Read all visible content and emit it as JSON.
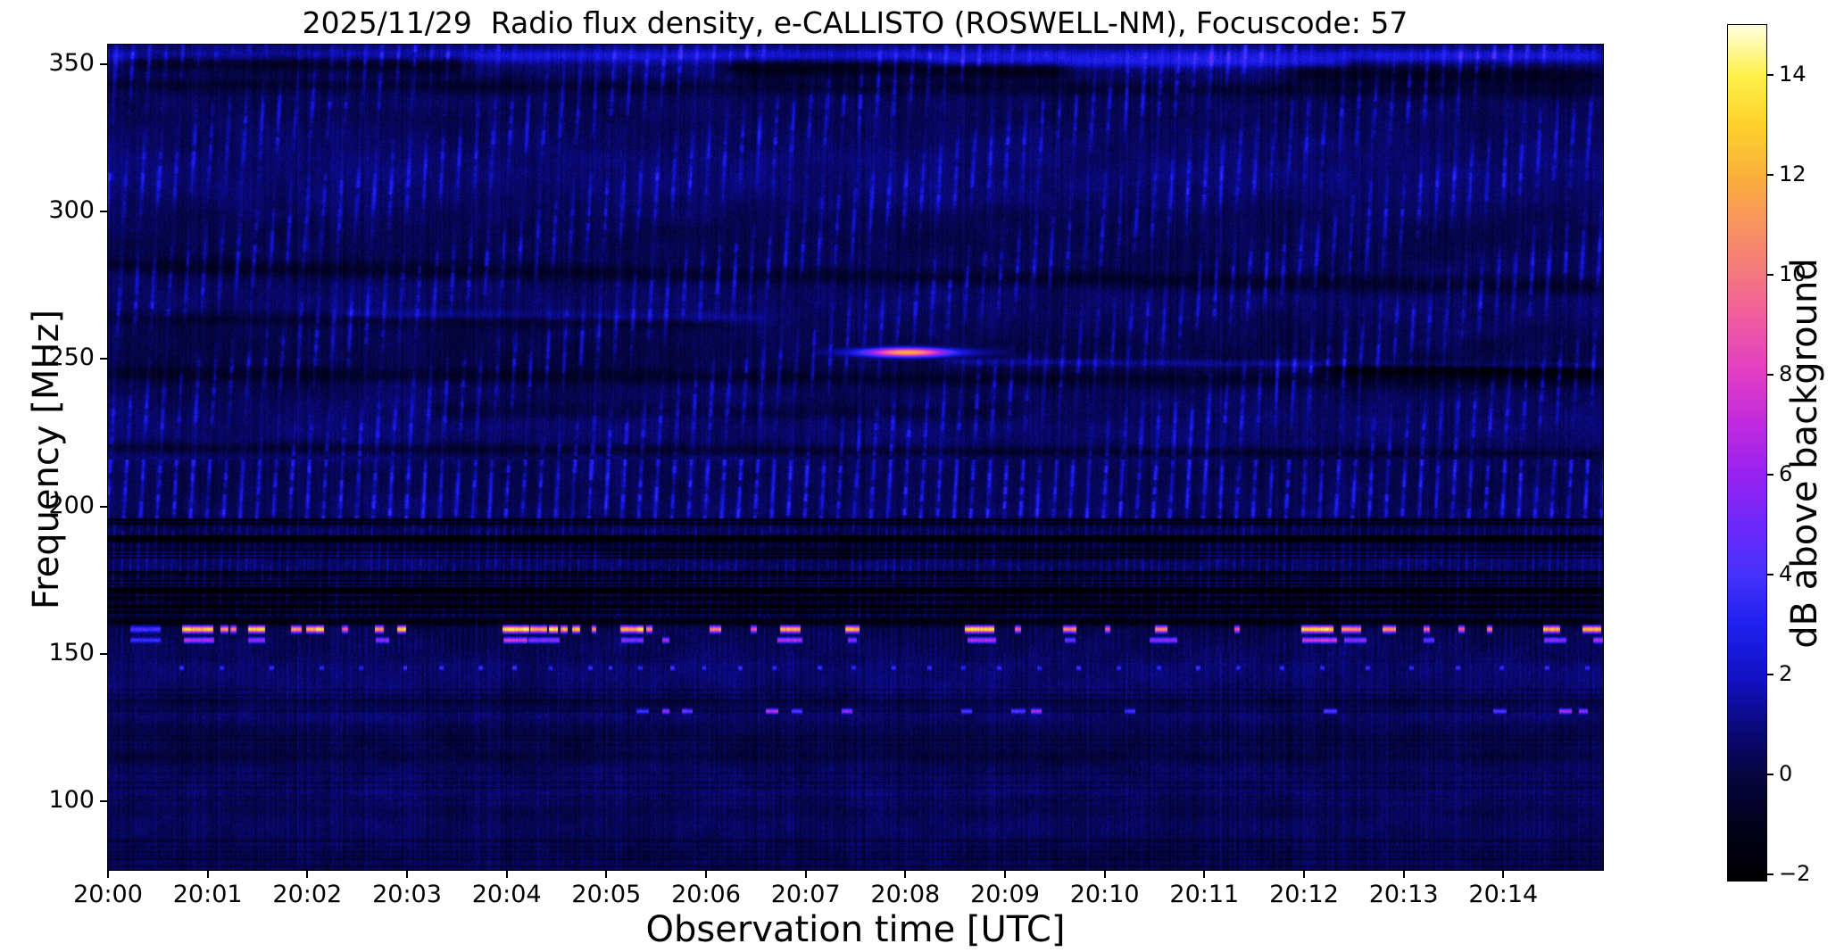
{
  "chart": {
    "title": "2025/11/29  Radio flux density, e-CALLISTO (ROSWELL-NM), Focuscode: 57",
    "xlabel": "Observation time [UTC]",
    "ylabel": "Frequency [MHz]",
    "colorbar_label": "dB above background"
  },
  "chart_data": {
    "type": "heatmap",
    "subtype": "radio-spectrogram",
    "title": "2025/11/29  Radio flux density, e-CALLISTO (ROSWELL-NM), Focuscode: 57",
    "date": "2025/11/29",
    "station": "ROSWELL-NM",
    "focuscode": 57,
    "x_axis": {
      "label": "Observation time [UTC]",
      "ticks": [
        "20:00",
        "20:01",
        "20:02",
        "20:03",
        "20:04",
        "20:05",
        "20:06",
        "20:07",
        "20:08",
        "20:09",
        "20:10",
        "20:11",
        "20:12",
        "20:13",
        "20:14"
      ],
      "tick_minutes": [
        0,
        1,
        2,
        3,
        4,
        5,
        6,
        7,
        8,
        9,
        10,
        11,
        12,
        13,
        14
      ],
      "range_minutes": [
        0,
        15
      ],
      "start": "20:00",
      "end": "20:15"
    },
    "y_axis": {
      "label": "Frequency [MHz]",
      "ticks": [
        350,
        300,
        250,
        200,
        150,
        100
      ],
      "range": [
        76.7,
        356.6
      ]
    },
    "colorbar": {
      "label": "dB above background",
      "ticks": [
        14,
        12,
        10,
        8,
        6,
        4,
        2,
        0,
        -2
      ],
      "range": [
        -2.12,
        15
      ],
      "colormap_stops": [
        [
          -2.12,
          "#000000"
        ],
        [
          -1,
          "#02011c"
        ],
        [
          0,
          "#06053f"
        ],
        [
          1,
          "#0a0a80"
        ],
        [
          2,
          "#1212c8"
        ],
        [
          3,
          "#2020f0"
        ],
        [
          4,
          "#4433fa"
        ],
        [
          5,
          "#6e28fa"
        ],
        [
          6,
          "#9722f0"
        ],
        [
          7,
          "#bf2ade"
        ],
        [
          8,
          "#e13cc6"
        ],
        [
          9,
          "#ee58a4"
        ],
        [
          10,
          "#f47780"
        ],
        [
          11,
          "#f8935f"
        ],
        [
          12,
          "#fbb03b"
        ],
        [
          13,
          "#fdd22a"
        ],
        [
          14,
          "#fef04a"
        ],
        [
          15,
          "#ffffe0"
        ]
      ]
    },
    "background": {
      "base_levels": [
        [
          76.7,
          148,
          0.5
        ],
        [
          148,
          163,
          0.3
        ],
        [
          163,
          196,
          0.34
        ],
        [
          196,
          216,
          0.72
        ],
        [
          216,
          356.6,
          0.66
        ]
      ],
      "noise_fine": 0.95,
      "noise_column": 0.55,
      "noise_blob": 0.5,
      "wave_amp": 0.22
    },
    "combs": [
      {
        "f1": 196,
        "f2": 216,
        "period": 18.6,
        "tilt": 0.055,
        "amp": 2.6,
        "drift": 0
      },
      {
        "f1": 217,
        "f2": 356.6,
        "period": 18.6,
        "tilt": 0.055,
        "amp": 1.9,
        "drift": 1
      },
      {
        "f1": 163,
        "f2": 196,
        "period": 9.3,
        "tilt": 0.03,
        "amp": 1.1,
        "drift": 0
      },
      {
        "f1": 150,
        "f2": 163,
        "period": 6.2,
        "tilt": 0,
        "amp": 0.7,
        "drift": 0
      },
      {
        "f1": 76.7,
        "f2": 150,
        "period": 5.5,
        "tilt": 0,
        "amp": 0.45,
        "drift": 0
      }
    ],
    "dark_rows": [
      {
        "f1": 163,
        "f2": 196,
        "density": 0.42,
        "amp": 1.6
      },
      {
        "f1": 76.7,
        "f2": 150,
        "density": 0.16,
        "amp": 0.5
      }
    ],
    "bands": [
      {
        "t0": 0.2,
        "t1": 3.6,
        "f": 349,
        "slope": -0.3,
        "amp": -1.7,
        "w": 2.5
      },
      {
        "t0": 6.2,
        "t1": 9.6,
        "f": 348.5,
        "slope": -0.2,
        "amp": -1.9,
        "w": 2.2
      },
      {
        "t0": 11.9,
        "t1": 15,
        "f": 348,
        "slope": -0.25,
        "amp": -1.5,
        "w": 2.2
      },
      {
        "t0": 0,
        "t1": 15,
        "f": 352.8,
        "slope": 0,
        "amp": 1.7,
        "w": 1.6
      },
      {
        "t0": 8.2,
        "t1": 12.4,
        "f": 350.6,
        "slope": -0.08,
        "amp": 1.4,
        "w": 1.2
      },
      {
        "t0": 0,
        "t1": 15,
        "f": 342,
        "slope": -0.15,
        "amp": -0.8,
        "w": 1.8
      },
      {
        "t0": 0,
        "t1": 15,
        "f": 278,
        "slope": -0.45,
        "amp": -1.0,
        "w": 2.0
      },
      {
        "t0": 0,
        "t1": 6.2,
        "f": 261.5,
        "slope": -0.3,
        "amp": -0.7,
        "w": 1.6
      },
      {
        "t0": 2.3,
        "t1": 6.6,
        "f": 263.5,
        "slope": -0.35,
        "amp": 0.8,
        "w": 1.2
      },
      {
        "t0": 12.2,
        "t1": 15,
        "f": 248.2,
        "slope": -0.35,
        "amp": -2.0,
        "w": 1.6
      },
      {
        "t0": 0,
        "t1": 15,
        "f": 243.5,
        "slope": -0.2,
        "amp": -0.8,
        "w": 1.7
      },
      {
        "t0": 3.2,
        "t1": 9.2,
        "f": 232,
        "slope": -0.15,
        "amp": -0.6,
        "w": 2.0
      },
      {
        "t0": 0,
        "t1": 15,
        "f": 218.8,
        "slope": -0.15,
        "amp": -0.9,
        "w": 1.2
      },
      {
        "t0": 8.4,
        "t1": 15,
        "f": 249.3,
        "slope": -0.23,
        "amp": 1.1,
        "w": 0.9
      },
      {
        "t0": 0,
        "t1": 15,
        "f": 194.5,
        "slope": 0,
        "amp": -0.9,
        "w": 1.2
      },
      {
        "t0": 0,
        "t1": 15,
        "f": 188,
        "slope": 0,
        "amp": -1.1,
        "w": 1.6
      },
      {
        "t0": 5,
        "t1": 11,
        "f": 183.5,
        "slope": 0,
        "amp": -0.9,
        "w": 1.2
      },
      {
        "t0": 0,
        "t1": 15,
        "f": 160.9,
        "slope": 0,
        "amp": -1.7,
        "w": 1.0
      },
      {
        "t0": 0,
        "t1": 15,
        "f": 166.5,
        "slope": 0,
        "amp": -1.0,
        "w": 0.9
      },
      {
        "t0": 0,
        "t1": 15,
        "f": 171.5,
        "slope": 0,
        "amp": -1.1,
        "w": 0.9
      },
      {
        "t0": 0,
        "t1": 15,
        "f": 176.5,
        "slope": 0,
        "amp": -0.9,
        "w": 0.9
      },
      {
        "t0": 0,
        "t1": 15,
        "f": 115,
        "slope": 0,
        "amp": -0.4,
        "w": 1.5
      },
      {
        "t0": 0,
        "t1": 15,
        "f": 97,
        "slope": 0,
        "amp": -0.35,
        "w": 2.0
      },
      {
        "t0": 0,
        "t1": 15,
        "f": 133.5,
        "slope": 0,
        "amp": -0.4,
        "w": 1.2
      },
      {
        "t0": 0,
        "t1": 15,
        "f": 128.5,
        "slope": 0,
        "amp": 0.35,
        "w": 1.5
      }
    ],
    "flare": {
      "t_peak": 8.02,
      "t_start": 7.5,
      "t_end": 8.48,
      "f": 252.2,
      "f_sigma": 1.05,
      "peak_db": 9.3
    },
    "burst_rows": [
      {
        "f": 158.3,
        "h_mhz": 1.6,
        "segments": [
          [
            0.22,
            0.52,
            4.2
          ],
          [
            0.74,
            1.05,
            13
          ],
          [
            1.13,
            1.2,
            11
          ],
          [
            1.23,
            1.28,
            10
          ],
          [
            1.41,
            1.57,
            13
          ],
          [
            1.84,
            1.93,
            11
          ],
          [
            1.99,
            2.08,
            12
          ],
          [
            2.09,
            2.16,
            13.5
          ],
          [
            2.35,
            2.4,
            9
          ],
          [
            2.68,
            2.76,
            11
          ],
          [
            2.9,
            2.98,
            13
          ],
          [
            3.96,
            4.22,
            14
          ],
          [
            4.24,
            4.4,
            12
          ],
          [
            4.42,
            4.5,
            14
          ],
          [
            4.54,
            4.6,
            12
          ],
          [
            4.66,
            4.73,
            13
          ],
          [
            4.85,
            4.89,
            11
          ],
          [
            5.14,
            5.3,
            12
          ],
          [
            5.3,
            5.36,
            14
          ],
          [
            5.4,
            5.45,
            11
          ],
          [
            6.04,
            6.14,
            11
          ],
          [
            6.45,
            6.5,
            9
          ],
          [
            6.74,
            6.94,
            12
          ],
          [
            7.4,
            7.53,
            12.5
          ],
          [
            8.6,
            8.88,
            13.5
          ],
          [
            9.1,
            9.15,
            9
          ],
          [
            9.58,
            9.71,
            10.5
          ],
          [
            10.0,
            10.05,
            9
          ],
          [
            10.5,
            10.62,
            11
          ],
          [
            11.3,
            11.35,
            9
          ],
          [
            11.97,
            12.29,
            13.5
          ],
          [
            12.38,
            12.56,
            11
          ],
          [
            12.79,
            12.91,
            11
          ],
          [
            13.2,
            13.25,
            10
          ],
          [
            13.55,
            13.6,
            9
          ],
          [
            13.84,
            13.88,
            10
          ],
          [
            14.4,
            14.56,
            12
          ],
          [
            14.79,
            14.97,
            12.5
          ]
        ]
      },
      {
        "f": 154.6,
        "h_mhz": 1.3,
        "segments": [
          [
            0.22,
            0.52,
            3.8
          ],
          [
            0.76,
            1.06,
            7
          ],
          [
            1.41,
            1.57,
            6
          ],
          [
            2.69,
            2.81,
            6
          ],
          [
            3.97,
            4.2,
            8
          ],
          [
            4.22,
            4.52,
            6
          ],
          [
            5.15,
            5.36,
            6
          ],
          [
            5.56,
            5.62,
            7
          ],
          [
            6.72,
            6.96,
            7
          ],
          [
            7.42,
            7.5,
            6
          ],
          [
            8.62,
            8.9,
            7
          ],
          [
            9.6,
            9.7,
            5
          ],
          [
            10.45,
            10.72,
            6
          ],
          [
            11.98,
            12.32,
            8
          ],
          [
            12.4,
            12.62,
            6
          ],
          [
            13.2,
            13.3,
            5
          ],
          [
            14.41,
            14.62,
            6
          ],
          [
            14.9,
            15.0,
            7
          ]
        ]
      },
      {
        "f": 130.5,
        "h_mhz": 1.2,
        "segments": [
          [
            5.3,
            5.42,
            4
          ],
          [
            5.56,
            5.62,
            6.5
          ],
          [
            5.76,
            5.86,
            5
          ],
          [
            6.6,
            6.72,
            7
          ],
          [
            6.86,
            6.96,
            4.5
          ],
          [
            7.36,
            7.46,
            6
          ],
          [
            8.56,
            8.66,
            4.5
          ],
          [
            9.06,
            9.2,
            4.5
          ],
          [
            9.26,
            9.36,
            7
          ],
          [
            10.2,
            10.3,
            4
          ],
          [
            12.2,
            12.32,
            4.5
          ],
          [
            13.9,
            14.02,
            4.5
          ],
          [
            14.56,
            14.68,
            7
          ],
          [
            14.76,
            14.84,
            6
          ]
        ]
      },
      {
        "f": 145.2,
        "h_mhz": 1.2,
        "segments": [
          [
            0.72,
            0.755,
            3.9
          ],
          [
            1.12,
            1.155,
            3.5
          ],
          [
            1.62,
            1.655,
            4.1
          ],
          [
            2.12,
            2.155,
            3.6
          ],
          [
            2.52,
            2.555,
            3.4
          ],
          [
            2.96,
            2.995,
            4.2
          ],
          [
            3.32,
            3.355,
            3.5
          ],
          [
            3.72,
            3.755,
            3.8
          ],
          [
            4.06,
            4.095,
            4.3
          ],
          [
            4.42,
            4.455,
            3.5
          ],
          [
            4.82,
            4.855,
            3.7
          ],
          [
            5.02,
            5.055,
            4.0
          ],
          [
            5.32,
            5.355,
            3.5
          ],
          [
            5.64,
            5.675,
            4.2
          ],
          [
            5.96,
            5.995,
            3.6
          ],
          [
            6.32,
            6.355,
            3.9
          ],
          [
            6.66,
            6.695,
            3.5
          ],
          [
            7.12,
            7.155,
            4.1
          ],
          [
            7.46,
            7.495,
            3.6
          ],
          [
            7.86,
            7.895,
            3.8
          ],
          [
            8.22,
            8.255,
            4.2
          ],
          [
            8.56,
            8.595,
            3.5
          ],
          [
            8.92,
            8.955,
            3.9
          ],
          [
            9.32,
            9.355,
            3.6
          ],
          [
            9.72,
            9.755,
            4.1
          ],
          [
            10.12,
            10.155,
            3.5
          ],
          [
            10.52,
            10.555,
            3.8
          ],
          [
            10.92,
            10.955,
            4.2
          ],
          [
            11.32,
            11.355,
            3.6
          ],
          [
            11.76,
            11.795,
            3.9
          ],
          [
            12.16,
            12.195,
            3.5
          ],
          [
            12.62,
            12.655,
            4.1
          ],
          [
            13.06,
            13.095,
            3.7
          ],
          [
            13.52,
            13.555,
            3.9
          ],
          [
            13.96,
            13.995,
            3.6
          ],
          [
            14.42,
            14.455,
            4.0
          ],
          [
            14.82,
            14.855,
            3.7
          ]
        ]
      }
    ]
  }
}
